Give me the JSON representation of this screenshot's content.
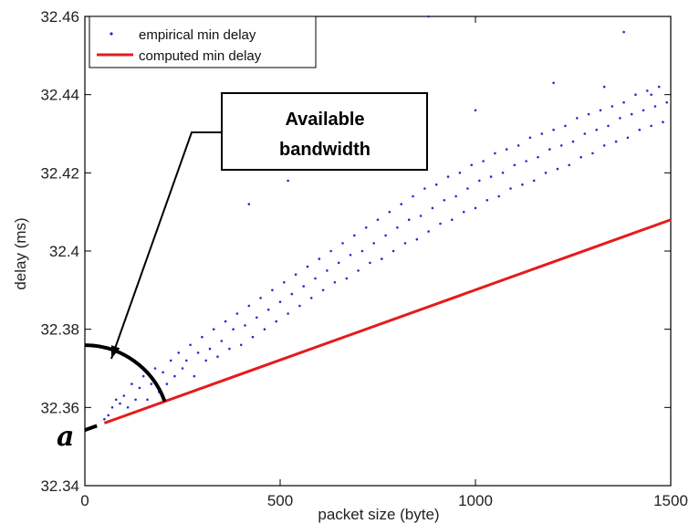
{
  "chart_data": {
    "type": "scatter",
    "title": "",
    "xlabel": "packet size (byte)",
    "ylabel": "delay (ms)",
    "xlim": [
      0,
      1500
    ],
    "ylim": [
      32.34,
      32.46
    ],
    "xticks": [
      0,
      500,
      1000,
      1500
    ],
    "yticks": [
      32.34,
      32.36,
      32.38,
      32.4,
      32.42,
      32.44,
      32.46
    ],
    "xtick_labels": [
      "0",
      "500",
      "1000",
      "1500"
    ],
    "ytick_labels": [
      "32.34",
      "32.36",
      "32.38",
      "32.4",
      "32.42",
      "32.44",
      "32.46"
    ],
    "grid": false,
    "legend_position": "top-left",
    "series": [
      {
        "name": "empirical min delay",
        "type": "scatter",
        "color": "#2a2ad0",
        "points": [
          [
            50,
            32.357
          ],
          [
            60,
            32.358
          ],
          [
            70,
            32.36
          ],
          [
            80,
            32.362
          ],
          [
            90,
            32.361
          ],
          [
            100,
            32.363
          ],
          [
            110,
            32.36
          ],
          [
            120,
            32.366
          ],
          [
            130,
            32.362
          ],
          [
            140,
            32.365
          ],
          [
            150,
            32.368
          ],
          [
            160,
            32.362
          ],
          [
            170,
            32.366
          ],
          [
            180,
            32.37
          ],
          [
            190,
            32.364
          ],
          [
            200,
            32.369
          ],
          [
            210,
            32.366
          ],
          [
            220,
            32.372
          ],
          [
            230,
            32.368
          ],
          [
            240,
            32.374
          ],
          [
            250,
            32.37
          ],
          [
            260,
            32.372
          ],
          [
            270,
            32.376
          ],
          [
            280,
            32.368
          ],
          [
            290,
            32.374
          ],
          [
            300,
            32.378
          ],
          [
            310,
            32.372
          ],
          [
            320,
            32.375
          ],
          [
            330,
            32.38
          ],
          [
            340,
            32.373
          ],
          [
            350,
            32.377
          ],
          [
            360,
            32.382
          ],
          [
            370,
            32.375
          ],
          [
            380,
            32.38
          ],
          [
            390,
            32.384
          ],
          [
            400,
            32.376
          ],
          [
            410,
            32.381
          ],
          [
            420,
            32.386
          ],
          [
            430,
            32.378
          ],
          [
            440,
            32.383
          ],
          [
            450,
            32.388
          ],
          [
            460,
            32.38
          ],
          [
            470,
            32.385
          ],
          [
            480,
            32.39
          ],
          [
            490,
            32.382
          ],
          [
            500,
            32.387
          ],
          [
            510,
            32.392
          ],
          [
            520,
            32.384
          ],
          [
            530,
            32.389
          ],
          [
            540,
            32.394
          ],
          [
            550,
            32.386
          ],
          [
            560,
            32.391
          ],
          [
            570,
            32.396
          ],
          [
            580,
            32.388
          ],
          [
            590,
            32.393
          ],
          [
            600,
            32.398
          ],
          [
            610,
            32.39
          ],
          [
            620,
            32.395
          ],
          [
            630,
            32.4
          ],
          [
            640,
            32.392
          ],
          [
            650,
            32.397
          ],
          [
            660,
            32.402
          ],
          [
            670,
            32.393
          ],
          [
            680,
            32.399
          ],
          [
            690,
            32.404
          ],
          [
            700,
            32.395
          ],
          [
            710,
            32.4
          ],
          [
            720,
            32.406
          ],
          [
            730,
            32.397
          ],
          [
            740,
            32.402
          ],
          [
            750,
            32.408
          ],
          [
            760,
            32.398
          ],
          [
            770,
            32.404
          ],
          [
            780,
            32.41
          ],
          [
            790,
            32.4
          ],
          [
            800,
            32.406
          ],
          [
            810,
            32.412
          ],
          [
            820,
            32.402
          ],
          [
            830,
            32.408
          ],
          [
            840,
            32.414
          ],
          [
            850,
            32.403
          ],
          [
            860,
            32.409
          ],
          [
            870,
            32.416
          ],
          [
            880,
            32.405
          ],
          [
            890,
            32.411
          ],
          [
            900,
            32.417
          ],
          [
            910,
            32.407
          ],
          [
            920,
            32.413
          ],
          [
            930,
            32.419
          ],
          [
            940,
            32.408
          ],
          [
            950,
            32.414
          ],
          [
            960,
            32.42
          ],
          [
            970,
            32.41
          ],
          [
            980,
            32.416
          ],
          [
            990,
            32.422
          ],
          [
            1000,
            32.411
          ],
          [
            1010,
            32.418
          ],
          [
            1020,
            32.423
          ],
          [
            1030,
            32.413
          ],
          [
            1040,
            32.419
          ],
          [
            1050,
            32.425
          ],
          [
            1060,
            32.414
          ],
          [
            1070,
            32.42
          ],
          [
            1080,
            32.426
          ],
          [
            1090,
            32.416
          ],
          [
            1100,
            32.422
          ],
          [
            1110,
            32.427
          ],
          [
            1120,
            32.417
          ],
          [
            1130,
            32.423
          ],
          [
            1140,
            32.429
          ],
          [
            1150,
            32.418
          ],
          [
            1160,
            32.424
          ],
          [
            1170,
            32.43
          ],
          [
            1180,
            32.42
          ],
          [
            1190,
            32.426
          ],
          [
            1200,
            32.431
          ],
          [
            1210,
            32.421
          ],
          [
            1220,
            32.427
          ],
          [
            1230,
            32.432
          ],
          [
            1240,
            32.422
          ],
          [
            1250,
            32.428
          ],
          [
            1260,
            32.434
          ],
          [
            1270,
            32.424
          ],
          [
            1280,
            32.43
          ],
          [
            1290,
            32.435
          ],
          [
            1300,
            32.425
          ],
          [
            1310,
            32.431
          ],
          [
            1320,
            32.436
          ],
          [
            1330,
            32.427
          ],
          [
            1340,
            32.432
          ],
          [
            1350,
            32.437
          ],
          [
            1360,
            32.428
          ],
          [
            1370,
            32.434
          ],
          [
            1380,
            32.438
          ],
          [
            1390,
            32.429
          ],
          [
            1400,
            32.435
          ],
          [
            1410,
            32.44
          ],
          [
            1420,
            32.431
          ],
          [
            1430,
            32.436
          ],
          [
            1440,
            32.441
          ],
          [
            1450,
            32.432
          ],
          [
            1460,
            32.437
          ],
          [
            1470,
            32.442
          ],
          [
            1480,
            32.433
          ],
          [
            1490,
            32.438
          ],
          [
            420,
            32.412
          ],
          [
            880,
            32.46
          ],
          [
            1200,
            32.443
          ],
          [
            1380,
            32.456
          ],
          [
            1330,
            32.442
          ],
          [
            770,
            32.435
          ],
          [
            1000,
            32.436
          ],
          [
            520,
            32.418
          ],
          [
            1450,
            32.44
          ]
        ]
      },
      {
        "name": "computed min delay",
        "type": "line",
        "color": "#e51b1b",
        "x": [
          50,
          1500
        ],
        "y": [
          32.356,
          32.408
        ]
      }
    ],
    "annotations": [
      {
        "text_line_1": "Available",
        "text_line_2": "bandwidth"
      },
      {
        "symbol": "a"
      }
    ]
  }
}
